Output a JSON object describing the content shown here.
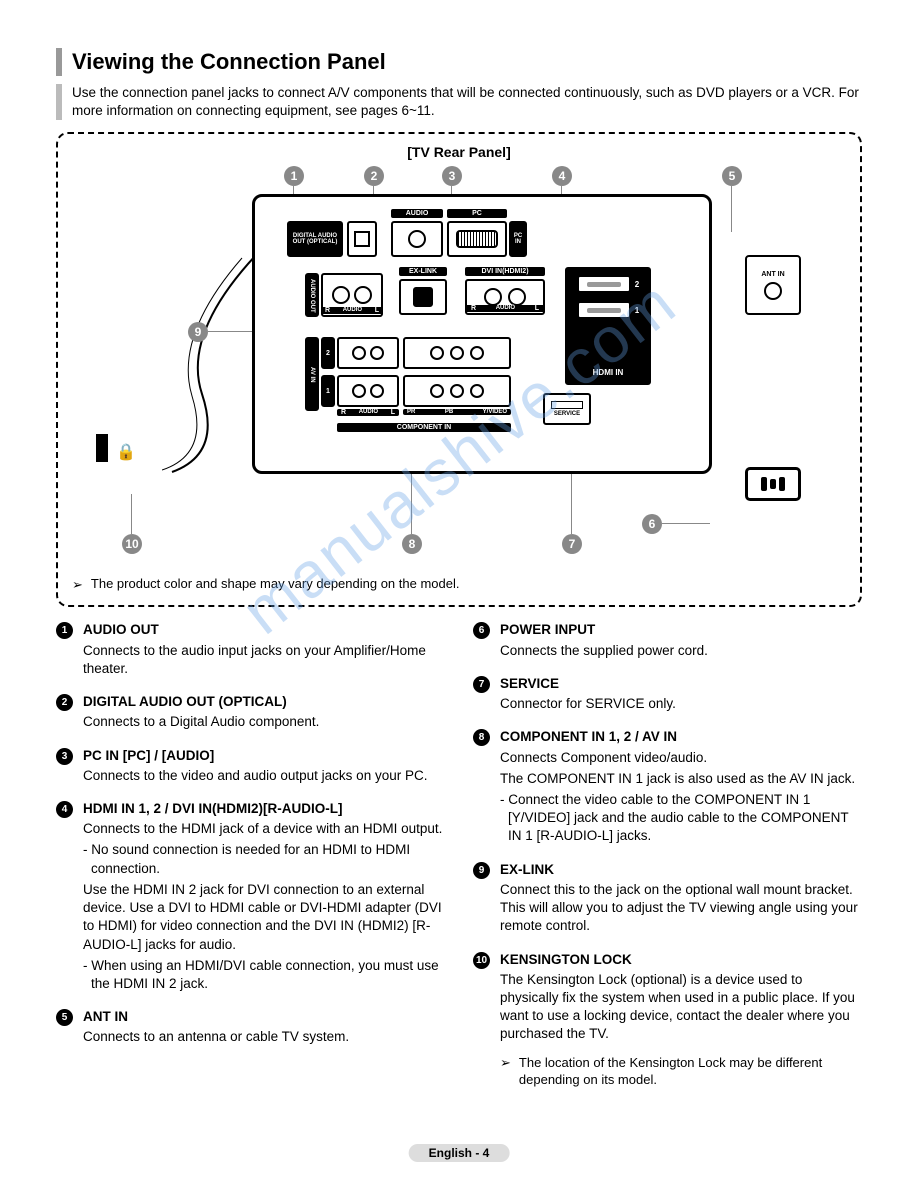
{
  "page": {
    "title": "Viewing the Connection Panel",
    "intro": "Use the connection panel jacks to connect A/V components that will be connected continuously, such as DVD players or a VCR. For more information on connecting equipment, see pages 6~11.",
    "diagram_title": "[TV Rear Panel]",
    "note": "The product color and shape may vary depending on the model.",
    "footer": "English - 4",
    "watermark": "manualshive.com"
  },
  "callouts": {
    "c1": "1",
    "c2": "2",
    "c3": "3",
    "c4": "4",
    "c5": "5",
    "c6": "6",
    "c7": "7",
    "c8": "8",
    "c9": "9",
    "c10": "10"
  },
  "panel_labels": {
    "digital_audio": "DIGITAL AUDIO OUT (OPTICAL)",
    "audio": "AUDIO",
    "pc": "PC",
    "pc_in": "PC IN",
    "audio_out": "AUDIO OUT",
    "exlink": "EX-LINK",
    "dvi_in": "DVI IN(HDMI2)",
    "r": "R",
    "l": "L",
    "audio_lbl": "AUDIO",
    "av_in": "AV IN",
    "hdmi_in": "HDMI IN",
    "component_in": "COMPONENT IN",
    "service": "SERVICE",
    "ant_in": "ANT IN",
    "one": "1",
    "two": "2",
    "pr": "PR",
    "pb": "PB",
    "y_video": "Y/VIDEO"
  },
  "items_left": [
    {
      "num": "1",
      "title": "AUDIO OUT",
      "paras": [
        "Connects to the audio input jacks on your Amplifier/Home theater."
      ]
    },
    {
      "num": "2",
      "title": "DIGITAL AUDIO OUT (OPTICAL)",
      "paras": [
        "Connects to a Digital Audio component."
      ]
    },
    {
      "num": "3",
      "title": "PC IN [PC] / [AUDIO]",
      "paras": [
        "Connects to the video and audio output jacks on your PC."
      ]
    },
    {
      "num": "4",
      "title": "HDMI IN 1, 2 / DVI IN(HDMI2)[R-AUDIO-L]",
      "paras": [
        "Connects to the HDMI jack of a device with an HDMI output.",
        "- No sound connection is needed for an HDMI to HDMI connection.",
        "Use the HDMI IN 2 jack for DVI connection to an external device. Use a DVI to HDMI cable or DVI-HDMI adapter (DVI to HDMI) for video connection and the DVI IN (HDMI2) [R-AUDIO-L] jacks for audio.",
        "- When using an HDMI/DVI cable connection, you must use the HDMI IN 2 jack."
      ]
    },
    {
      "num": "5",
      "title": "ANT IN",
      "paras": [
        "Connects to an antenna or cable TV system."
      ]
    }
  ],
  "items_right": [
    {
      "num": "6",
      "title": "POWER INPUT",
      "paras": [
        "Connects the supplied power cord."
      ]
    },
    {
      "num": "7",
      "title": "SERVICE",
      "paras": [
        "Connector for SERVICE only."
      ]
    },
    {
      "num": "8",
      "title": "COMPONENT IN 1, 2 / AV IN",
      "paras": [
        "Connects Component video/audio.",
        "The COMPONENT IN 1 jack is also used as the AV IN jack.",
        "- Connect the video cable to the COMPONENT IN 1 [Y/VIDEO] jack and the audio cable to the COMPONENT IN 1 [R-AUDIO-L] jacks."
      ]
    },
    {
      "num": "9",
      "title": "EX-LINK",
      "paras": [
        "Connect this to the jack on the optional wall mount bracket. This will allow you to adjust the TV viewing angle using your remote control."
      ]
    },
    {
      "num": "10",
      "title": "KENSINGTON LOCK",
      "paras": [
        "The Kensington Lock (optional) is a device used to physically fix the system when used in a public place. If you want to use a locking device, contact the dealer where you purchased the TV."
      ],
      "note": "The location of the Kensington Lock may be different depending on its model."
    }
  ],
  "colors": {
    "callout_bg": "#888888",
    "badge_bg": "#000000",
    "accent": "#999999",
    "watermark": "rgba(100,160,230,0.35)"
  }
}
